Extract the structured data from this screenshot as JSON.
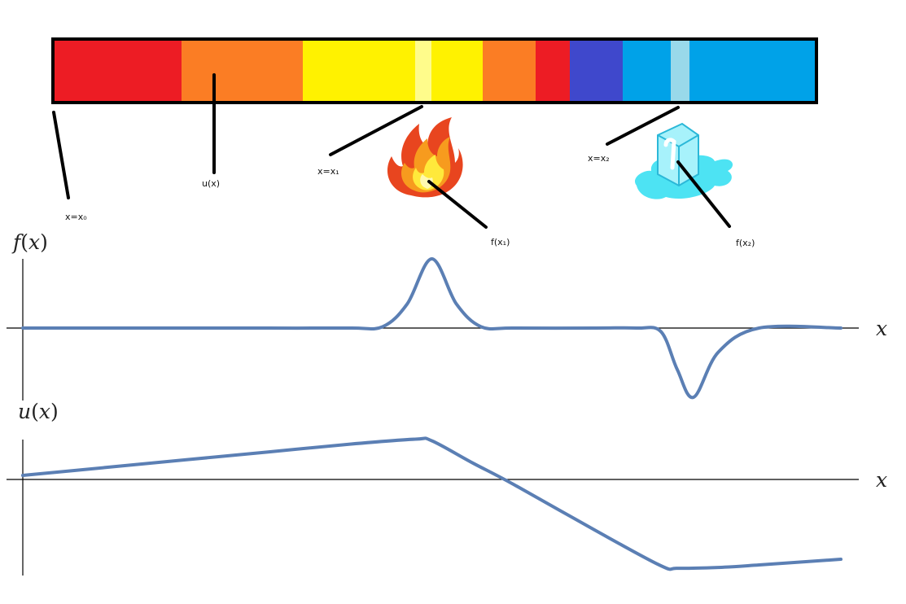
{
  "rod": {
    "segment_colors": [
      "#ed1c24",
      "#fb7d24",
      "#fff200",
      "#fffc8b",
      "#fff200",
      "#fb7d24",
      "#ed1c24",
      "#3f48cc",
      "#00a2e8",
      "#99d9ea",
      "#00a2e8"
    ],
    "border_color": "#000000"
  },
  "labels": {
    "x0": "x=x₀",
    "ux": "u(x)",
    "x1": "x=x₁",
    "x2": "x=x₂",
    "fx1": "f(x₁)",
    "fx2": "f(x₂)"
  },
  "icons": {
    "source": "fire-icon",
    "sink": "ice-cube-icon"
  },
  "plots": {
    "f": {
      "ylabel_fn": "f",
      "ylabel_arg": "x",
      "xlabel": "x"
    },
    "u": {
      "ylabel_fn": "u",
      "ylabel_arg": "x",
      "xlabel": "x"
    }
  },
  "chart_data": [
    {
      "type": "line",
      "description_role": "source term",
      "x": [
        0,
        0.1,
        0.2,
        0.3,
        0.4,
        0.44,
        0.47,
        0.5,
        0.53,
        0.56,
        0.6,
        0.7,
        0.75,
        0.78,
        0.8,
        0.82,
        0.85,
        0.9,
        1.0
      ],
      "y": [
        0,
        0,
        0,
        0,
        0,
        0.02,
        0.35,
        1.0,
        0.35,
        0.02,
        0,
        0,
        0,
        -0.05,
        -0.6,
        -1.0,
        -0.35,
        0,
        0
      ],
      "xlim": [
        0,
        1
      ],
      "ylim": [
        -1.1,
        1.1
      ],
      "xlabel": "x",
      "ylabel": "f(x)",
      "grid": false
    },
    {
      "type": "line",
      "description_role": "temperature",
      "x": [
        0,
        0.1,
        0.2,
        0.3,
        0.4,
        0.48,
        0.5,
        0.55,
        0.6,
        0.7,
        0.78,
        0.8,
        0.85,
        0.9,
        1.0
      ],
      "y": [
        0.05,
        0.145,
        0.24,
        0.335,
        0.43,
        0.49,
        0.47,
        0.2,
        -0.06,
        -0.62,
        -1.05,
        -1.08,
        -1.07,
        -1.04,
        -0.97
      ],
      "xlim": [
        0,
        1
      ],
      "ylim": [
        -1.2,
        0.6
      ],
      "xlabel": "x",
      "ylabel": "u(x)",
      "grid": false
    }
  ]
}
